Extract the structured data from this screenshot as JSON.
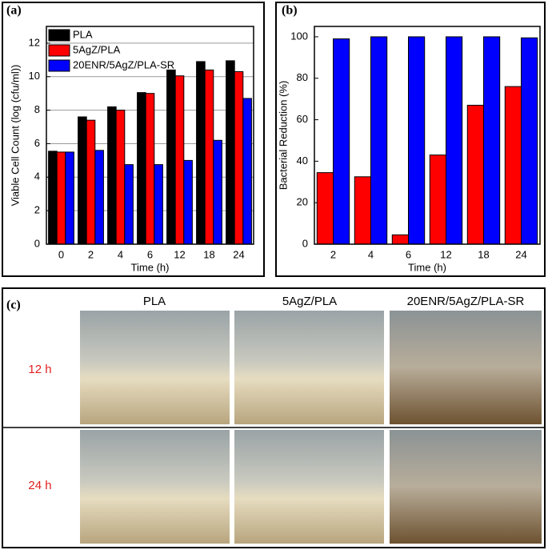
{
  "chart_data": [
    {
      "type": "bar",
      "panel_label": "(a)",
      "x_label": "Time (h)",
      "y_label": "Viable Cell Count (log (cfu/ml))",
      "categories": [
        "0",
        "2",
        "4",
        "6",
        "12",
        "18",
        "24"
      ],
      "series": [
        {
          "name": "PLA",
          "color": "#000000",
          "values": [
            5.55,
            7.6,
            8.2,
            9.05,
            10.4,
            10.9,
            10.95
          ]
        },
        {
          "name": "5AgZ/PLA",
          "color": "#ff0000",
          "values": [
            5.5,
            7.4,
            8.0,
            9.0,
            10.05,
            10.4,
            10.3
          ]
        },
        {
          "name": "20ENR/5AgZ/PLA-SR",
          "color": "#0000ff",
          "values": [
            5.5,
            5.6,
            4.75,
            4.75,
            5.0,
            6.2,
            8.7
          ]
        }
      ],
      "ylim": [
        0,
        13
      ],
      "yticks": [
        0,
        2,
        4,
        6,
        8,
        10,
        12
      ],
      "grid": true,
      "legend": "top-left"
    },
    {
      "type": "bar",
      "panel_label": "(b)",
      "x_label": "Time (h)",
      "y_label": "Bacterial Reduction (%)",
      "categories": [
        "2",
        "4",
        "6",
        "12",
        "18",
        "24"
      ],
      "series": [
        {
          "color": "#ff0000",
          "values": [
            34.5,
            32.5,
            4.5,
            43,
            67,
            76
          ]
        },
        {
          "color": "#0000ff",
          "values": [
            99,
            100,
            100,
            100,
            100,
            99.5
          ]
        }
      ],
      "ylim": [
        0,
        105
      ],
      "yticks": [
        0,
        20,
        40,
        60,
        80,
        100
      ],
      "grid": false
    }
  ],
  "photo_panel": {
    "label": "(c)",
    "columns": [
      "PLA",
      "5AgZ/PLA",
      "20ENR/5AgZ/PLA-SR"
    ],
    "rows": [
      "12 h",
      "24 h"
    ]
  }
}
